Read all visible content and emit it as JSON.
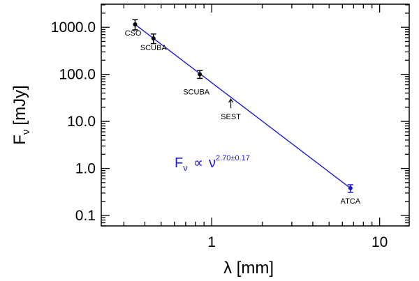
{
  "chart_data": {
    "type": "scatter",
    "xlabel": "λ [mm]",
    "ylabel": "F",
    "ylabel_sub": "ν",
    "ylabel_unit": "[mJy]",
    "x_scale": "log",
    "y_scale": "log",
    "xlim": [
      0.22,
      15
    ],
    "ylim": [
      0.06,
      3100
    ],
    "x_ticks": [
      {
        "value": 1,
        "label": "1"
      },
      {
        "value": 10,
        "label": "10"
      }
    ],
    "y_ticks": [
      {
        "value": 0.1,
        "label": "0.1"
      },
      {
        "value": 1,
        "label": "1.0"
      },
      {
        "value": 10,
        "label": "10.0"
      },
      {
        "value": 100,
        "label": "100.0"
      },
      {
        "value": 1000,
        "label": "1000.0"
      }
    ],
    "points": [
      {
        "label": "CSO",
        "x": 0.35,
        "y": 1150,
        "err_lo": 880,
        "err_hi": 1450
      },
      {
        "label": "SCUBA",
        "x": 0.45,
        "y": 580,
        "err_lo": 450,
        "err_hi": 720
      },
      {
        "label": "SCUBA",
        "x": 0.85,
        "y": 100,
        "err_lo": 82,
        "err_hi": 120
      },
      {
        "label": "ATCA",
        "x": 6.7,
        "y": 0.38,
        "err_lo": 0.31,
        "err_hi": 0.45
      }
    ],
    "upper_limits": [
      {
        "label": "SEST",
        "x": 1.3,
        "y": 22
      }
    ],
    "fit_line": {
      "x": [
        0.35,
        6.7
      ],
      "y": [
        1150,
        0.38
      ]
    },
    "annotation": {
      "F": "F",
      "sub": "ν",
      "prop": "∝",
      "nu": "ν",
      "exponent": "2.70±0.17"
    },
    "colors": {
      "points": "#000000",
      "fit": "#1a1ad6",
      "atca": "#1a1ad6"
    }
  }
}
